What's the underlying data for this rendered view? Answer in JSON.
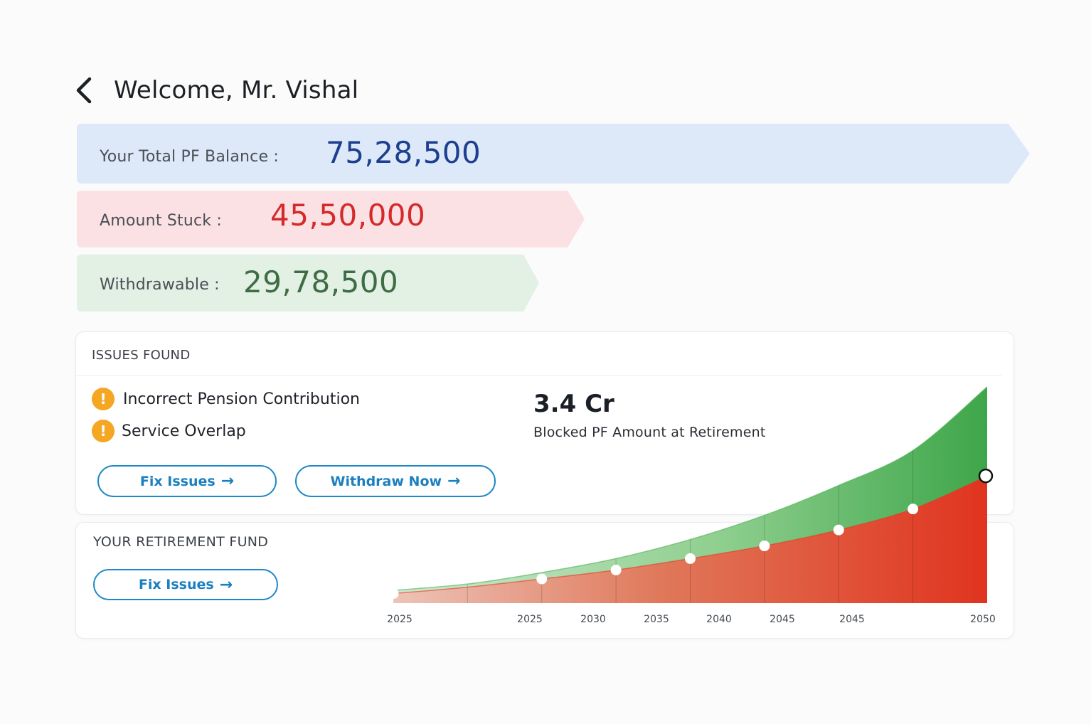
{
  "header": {
    "title": "Welcome, Mr. Vishal"
  },
  "balances": {
    "total": {
      "label": "Your Total PF Balance :",
      "value": "75,28,500",
      "color": "#1c3f8f"
    },
    "stuck": {
      "label": "Amount Stuck :",
      "value": "45,50,000",
      "color": "#d42a2a"
    },
    "withdrawable": {
      "label": "Withdrawable :",
      "value": "29,78,500",
      "color": "#3e6d45"
    }
  },
  "issues": {
    "title": "ISSUES FOUND",
    "items": [
      {
        "label": "Incorrect Pension Contribution",
        "icon": "warning-icon"
      },
      {
        "label": "Service Overlap",
        "icon": "warning-icon"
      }
    ],
    "warn_icon_char": "!",
    "fix_button": "Fix Issues",
    "withdraw_button": "Withdraw Now"
  },
  "retirement": {
    "title": "YOUR RETIREMENT FUND",
    "fix_button": "Fix Issues"
  },
  "highlight": {
    "value": "3.4 Cr",
    "caption": "Blocked PF Amount at Retirement"
  },
  "chart_data": {
    "type": "area",
    "x_tick_labels": [
      "2025",
      "2025",
      "2030",
      "2035",
      "2040",
      "2045",
      "2045",
      "2050"
    ],
    "series": [
      {
        "values": [
          0.2,
          0.3,
          0.48,
          0.7,
          1.0,
          1.38,
          1.85,
          2.4,
          3.4
        ],
        "color": "#4caf50"
      },
      {
        "values": [
          0.15,
          0.25,
          0.38,
          0.52,
          0.7,
          0.9,
          1.15,
          1.48,
          2.0
        ],
        "color": "#e53a26"
      }
    ],
    "marker_values": [
      0.15,
      0.38,
      0.52,
      0.7,
      0.9,
      1.15,
      1.48,
      2.0
    ],
    "ylim": [
      0,
      3.5
    ],
    "grid": false,
    "legend": "none"
  },
  "arrow_char": "→"
}
